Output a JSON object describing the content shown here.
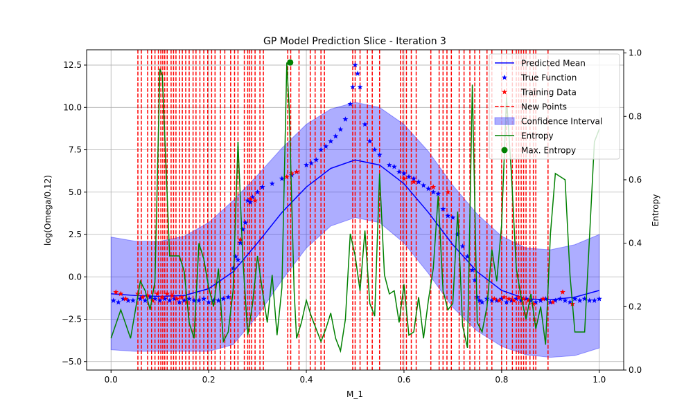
{
  "chart_data": {
    "type": "line",
    "title": "GP Model Prediction Slice - Iteration 3",
    "xlabel": "M_1",
    "ylabel": "log(Omega/0.12)",
    "ylabel_right": "Entropy",
    "xlim": [
      -0.05,
      1.05
    ],
    "ylim": [
      -5.5,
      13.4
    ],
    "ylim_right": [
      0,
      1.01
    ],
    "grid": true,
    "legend_position": "top-right",
    "x_ticks": [
      "0.0",
      "0.2",
      "0.4",
      "0.6",
      "0.8",
      "1.0"
    ],
    "y_ticks": [
      "−5.0",
      "−2.5",
      "0.0",
      "2.5",
      "5.0",
      "7.5",
      "10.0",
      "12.5"
    ],
    "y_ticks_right": [
      "0.0",
      "0.2",
      "0.4",
      "0.6",
      "0.8",
      "1.0"
    ],
    "colors": {
      "mean": "#0000ff",
      "true": "#0000ff",
      "training": "#ff0000",
      "new_points": "#ff0000",
      "ci": "#0000ff",
      "entropy": "#008000",
      "max_entropy": "#008000"
    },
    "legend": [
      "Predicted Mean",
      "True Function",
      "Training Data",
      "New Points",
      "Confidence Interval",
      "Entropy",
      "Max. Entropy"
    ],
    "predicted_mean": {
      "x": [
        0.0,
        0.05,
        0.1,
        0.15,
        0.2,
        0.25,
        0.3,
        0.35,
        0.4,
        0.45,
        0.5,
        0.55,
        0.6,
        0.65,
        0.7,
        0.75,
        0.8,
        0.85,
        0.9,
        0.95,
        1.0
      ],
      "y": [
        -1.0,
        -1.1,
        -1.15,
        -1.1,
        -0.7,
        0.3,
        2.0,
        3.8,
        5.3,
        6.4,
        6.9,
        6.6,
        5.5,
        3.8,
        1.9,
        0.3,
        -0.8,
        -1.3,
        -1.35,
        -1.2,
        -0.8
      ]
    },
    "confidence_interval": {
      "x": [
        0.0,
        0.05,
        0.1,
        0.15,
        0.2,
        0.25,
        0.3,
        0.35,
        0.4,
        0.45,
        0.5,
        0.55,
        0.6,
        0.65,
        0.7,
        0.75,
        0.8,
        0.85,
        0.9,
        0.95,
        1.0
      ],
      "upper": [
        2.35,
        2.1,
        2.1,
        2.4,
        3.2,
        4.5,
        6.0,
        7.6,
        9.0,
        9.9,
        10.3,
        10.0,
        9.0,
        7.4,
        5.4,
        3.7,
        2.4,
        1.7,
        1.6,
        1.9,
        2.5
      ],
      "lower": [
        -4.3,
        -4.4,
        -4.4,
        -4.4,
        -4.4,
        -4.0,
        -2.3,
        -0.2,
        1.7,
        3.0,
        3.5,
        3.2,
        2.0,
        0.2,
        -1.8,
        -3.2,
        -4.1,
        -4.6,
        -4.75,
        -4.65,
        -4.2
      ]
    },
    "true_function": {
      "x": [
        0.005,
        0.015,
        0.025,
        0.035,
        0.045,
        0.06,
        0.07,
        0.08,
        0.09,
        0.1,
        0.11,
        0.12,
        0.13,
        0.14,
        0.15,
        0.16,
        0.17,
        0.18,
        0.19,
        0.2,
        0.21,
        0.22,
        0.23,
        0.24,
        0.25,
        0.255,
        0.26,
        0.265,
        0.27,
        0.275,
        0.28,
        0.285,
        0.29,
        0.3,
        0.31,
        0.33,
        0.35,
        0.37,
        0.38,
        0.4,
        0.41,
        0.42,
        0.43,
        0.44,
        0.45,
        0.46,
        0.47,
        0.48,
        0.49,
        0.495,
        0.5,
        0.505,
        0.51,
        0.52,
        0.53,
        0.54,
        0.55,
        0.57,
        0.58,
        0.59,
        0.6,
        0.61,
        0.62,
        0.63,
        0.64,
        0.65,
        0.66,
        0.67,
        0.68,
        0.69,
        0.7,
        0.71,
        0.72,
        0.73,
        0.74,
        0.745,
        0.75,
        0.755,
        0.76,
        0.77,
        0.78,
        0.79,
        0.8,
        0.81,
        0.82,
        0.83,
        0.84,
        0.85,
        0.86,
        0.87,
        0.88,
        0.89,
        0.9,
        0.91,
        0.92,
        0.93,
        0.94,
        0.95,
        0.96,
        0.97,
        0.98,
        0.99,
        1.0
      ],
      "y": [
        -1.4,
        -1.5,
        -1.3,
        -1.4,
        -1.4,
        -1.3,
        -1.4,
        -1.2,
        -1.3,
        -1.4,
        -1.3,
        -1.4,
        -1.3,
        -1.5,
        -1.4,
        -1.3,
        -1.4,
        -1.4,
        -1.3,
        -1.5,
        -1.4,
        -1.4,
        -1.3,
        -1.2,
        0.5,
        1.2,
        1.0,
        2.0,
        2.8,
        3.2,
        4.5,
        4.4,
        4.7,
        5.0,
        5.3,
        5.5,
        5.8,
        6.0,
        6.2,
        6.6,
        6.7,
        6.9,
        7.5,
        7.7,
        8.0,
        8.3,
        8.7,
        9.3,
        10.2,
        11.2,
        12.5,
        12.0,
        11.2,
        9.0,
        8.0,
        7.5,
        7.2,
        6.6,
        6.5,
        6.2,
        6.1,
        5.9,
        5.8,
        5.6,
        5.4,
        5.2,
        5.0,
        4.9,
        4.0,
        3.6,
        3.5,
        2.5,
        1.8,
        1.2,
        0.4,
        -0.2,
        -1.2,
        -1.4,
        -1.5,
        -1.3,
        -1.4,
        -1.4,
        -1.3,
        -1.5,
        -1.4,
        -1.3,
        -1.4,
        -1.3,
        -1.4,
        -1.5,
        -1.4,
        -1.3,
        -1.5,
        -1.4,
        -1.3,
        -1.4,
        -1.5,
        -1.3,
        -1.4,
        -1.3,
        -1.4,
        -1.4,
        -1.3
      ]
    },
    "training_data": {
      "x": [
        0.01,
        0.02,
        0.03,
        0.055,
        0.065,
        0.075,
        0.085,
        0.095,
        0.105,
        0.115,
        0.125,
        0.135,
        0.145,
        0.155,
        0.265,
        0.285,
        0.295,
        0.36,
        0.37,
        0.38,
        0.6,
        0.62,
        0.66,
        0.69,
        0.785,
        0.795,
        0.805,
        0.815,
        0.825,
        0.835,
        0.845,
        0.855,
        0.865,
        0.885,
        0.905,
        0.925,
        0.945
      ],
      "y": [
        -0.9,
        -1.0,
        -1.3,
        -1.0,
        -1.2,
        -1.1,
        -1.4,
        -1.0,
        -1.2,
        -1.0,
        -1.1,
        -1.3,
        -1.2,
        -1.5,
        2.2,
        4.6,
        4.5,
        5.9,
        6.1,
        6.2,
        5.8,
        5.6,
        5.3,
        5.0,
        -1.3,
        -1.4,
        -1.2,
        -1.3,
        -1.4,
        -1.2,
        -1.3,
        -1.4,
        -1.6,
        -1.3,
        -1.5,
        -0.9,
        -1.6
      ]
    },
    "new_points_x": [
      0.055,
      0.062,
      0.075,
      0.083,
      0.09,
      0.097,
      0.102,
      0.106,
      0.11,
      0.115,
      0.123,
      0.128,
      0.133,
      0.14,
      0.146,
      0.153,
      0.16,
      0.168,
      0.174,
      0.182,
      0.19,
      0.198,
      0.206,
      0.213,
      0.224,
      0.233,
      0.245,
      0.253,
      0.26,
      0.273,
      0.28,
      0.284,
      0.288,
      0.295,
      0.305,
      0.312,
      0.362,
      0.368,
      0.385,
      0.408,
      0.418,
      0.43,
      0.437,
      0.495,
      0.5,
      0.51,
      0.525,
      0.535,
      0.55,
      0.593,
      0.598,
      0.605,
      0.615,
      0.625,
      0.655,
      0.672,
      0.68,
      0.688,
      0.697,
      0.713,
      0.723,
      0.735,
      0.745,
      0.755,
      0.77,
      0.78,
      0.8,
      0.81,
      0.822,
      0.83,
      0.835,
      0.84,
      0.845,
      0.85,
      0.858,
      0.865,
      0.87,
      0.895
    ],
    "entropy": {
      "x": [
        0.0,
        0.02,
        0.04,
        0.06,
        0.07,
        0.08,
        0.09,
        0.1,
        0.105,
        0.12,
        0.14,
        0.15,
        0.16,
        0.17,
        0.18,
        0.19,
        0.2,
        0.21,
        0.22,
        0.23,
        0.24,
        0.25,
        0.26,
        0.27,
        0.28,
        0.29,
        0.3,
        0.31,
        0.32,
        0.33,
        0.34,
        0.35,
        0.36,
        0.365,
        0.375,
        0.38,
        0.39,
        0.4,
        0.41,
        0.42,
        0.43,
        0.44,
        0.45,
        0.46,
        0.47,
        0.48,
        0.49,
        0.5,
        0.51,
        0.52,
        0.53,
        0.54,
        0.55,
        0.56,
        0.57,
        0.58,
        0.59,
        0.6,
        0.61,
        0.62,
        0.63,
        0.64,
        0.65,
        0.66,
        0.67,
        0.68,
        0.69,
        0.7,
        0.71,
        0.72,
        0.73,
        0.74,
        0.75,
        0.76,
        0.77,
        0.78,
        0.79,
        0.8,
        0.81,
        0.82,
        0.83,
        0.84,
        0.85,
        0.86,
        0.87,
        0.88,
        0.89,
        0.9,
        0.91,
        0.92,
        0.93,
        0.94,
        0.95,
        0.96,
        0.97,
        0.98,
        0.99,
        1.0
      ],
      "y": [
        0.1,
        0.19,
        0.1,
        0.28,
        0.25,
        0.19,
        0.28,
        0.95,
        0.93,
        0.36,
        0.36,
        0.31,
        0.15,
        0.1,
        0.4,
        0.35,
        0.26,
        0.2,
        0.32,
        0.09,
        0.12,
        0.25,
        0.72,
        0.35,
        0.11,
        0.21,
        0.36,
        0.25,
        0.15,
        0.3,
        0.11,
        0.26,
        0.97,
        0.82,
        0.25,
        0.1,
        0.15,
        0.22,
        0.17,
        0.13,
        0.09,
        0.13,
        0.18,
        0.1,
        0.06,
        0.16,
        0.43,
        0.36,
        0.25,
        0.44,
        0.21,
        0.17,
        0.62,
        0.3,
        0.24,
        0.25,
        0.15,
        0.27,
        0.11,
        0.12,
        0.23,
        0.1,
        0.22,
        0.32,
        0.55,
        0.25,
        0.19,
        0.21,
        0.5,
        0.14,
        0.07,
        0.9,
        0.15,
        0.12,
        0.2,
        0.38,
        0.28,
        0.46,
        0.86,
        0.62,
        0.32,
        0.23,
        0.16,
        0.24,
        0.13,
        0.2,
        0.08,
        0.43,
        0.62,
        0.61,
        0.6,
        0.3,
        0.12,
        0.12,
        0.12,
        0.42,
        0.72,
        0.76
      ]
    },
    "max_entropy": {
      "x": 0.367,
      "y": 0.97
    }
  }
}
